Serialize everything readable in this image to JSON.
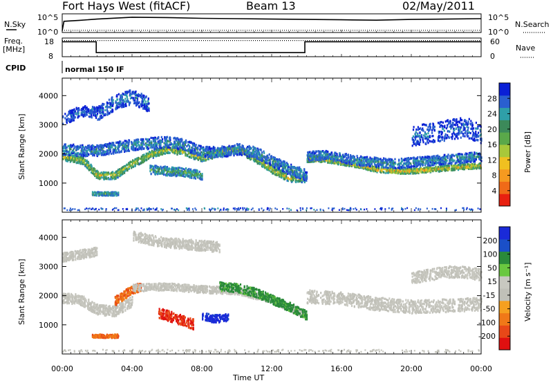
{
  "header": {
    "station": "Fort Hays West (fitACF)",
    "beam": "Beam 13",
    "date": "02/May/2011"
  },
  "colors": {
    "power_scale": [
      "#0a1fd6",
      "#2a5fd0",
      "#2f9fa8",
      "#3c8a5a",
      "#5aa84a",
      "#a8c83a",
      "#f0c020",
      "#f59a20",
      "#f06a18",
      "#e82010"
    ],
    "velocity_scale": [
      "#1a2ad8",
      "#1a4fc8",
      "#2a8a3a",
      "#6ac840",
      "#c8c8c0",
      "#c0c0b8",
      "#f5a020",
      "#f07818",
      "#e84818",
      "#e01010"
    ]
  },
  "chart_data": [
    {
      "type": "line",
      "name": "nsky-panel",
      "left_label": "N.Sky",
      "right_label": "N.Search",
      "left_ticks": [
        "10^5",
        "10^0"
      ],
      "right_ticks": [
        "10^5",
        "10^0"
      ],
      "x_range_hours": [
        0,
        24
      ],
      "series": [
        {
          "name": "N.Sky",
          "style": "solid",
          "x": [
            0,
            0.1,
            1,
            2,
            4,
            6,
            8,
            10,
            12,
            14,
            16,
            18,
            20,
            22,
            24
          ],
          "y": [
            0.1,
            0.6,
            0.65,
            0.72,
            0.82,
            0.8,
            0.76,
            0.74,
            0.72,
            0.7,
            0.68,
            0.66,
            0.7,
            0.72,
            0.74
          ]
        },
        {
          "name": "N.Search",
          "style": "dotted",
          "x": [
            0,
            24
          ],
          "y": [
            0.12,
            0.12
          ]
        }
      ]
    },
    {
      "type": "line",
      "name": "freq-panel",
      "left_label": "Freq.",
      "left_unit": "[MHz]",
      "right_label": "Nave",
      "left_ticks": [
        "18",
        "8"
      ],
      "right_ticks": [
        "60",
        "0"
      ],
      "x_range_hours": [
        0,
        24
      ],
      "series": [
        {
          "name": "Freq",
          "style": "solid",
          "x": [
            0,
            1.95,
            1.95,
            13.9,
            13.9,
            24
          ],
          "y": [
            16,
            16,
            10.2,
            10.2,
            16,
            16
          ]
        },
        {
          "name": "Nave",
          "style": "dotted",
          "x": [
            0,
            24
          ],
          "y": [
            52,
            52
          ]
        }
      ]
    },
    {
      "type": "table",
      "name": "cpid-strip",
      "label": "CPID",
      "text": "normal 150 IF"
    },
    {
      "type": "heatmap",
      "name": "power-panel",
      "ylabel": "Slant Range [km]",
      "x_range_hours": [
        0,
        24
      ],
      "ylim": [
        0,
        4600
      ],
      "y_ticks": [
        1000,
        2000,
        3000,
        4000
      ],
      "colorbar": {
        "label": "Power [dB]",
        "ticks": [
          4,
          8,
          12,
          16,
          20,
          24,
          28
        ],
        "range": [
          0,
          32
        ]
      },
      "bands": [
        {
          "x": [
            0,
            1.2,
            2,
            3,
            4,
            5,
            6,
            7,
            8,
            9,
            10,
            11,
            12,
            13,
            14
          ],
          "y": [
            1900,
            1750,
            1250,
            1250,
            1650,
            1950,
            2150,
            2050,
            1850,
            2050,
            2150,
            1850,
            1450,
            1150,
            1150
          ],
          "width": 260,
          "value": 18
        },
        {
          "x": [
            0,
            1,
            2,
            3,
            4,
            5,
            6,
            7,
            8,
            9,
            10,
            11,
            12,
            13,
            14
          ],
          "y": [
            2150,
            2100,
            2100,
            2200,
            2300,
            2350,
            2400,
            2300,
            2050,
            2050,
            2150,
            2050,
            1750,
            1450,
            1250
          ],
          "width": 380,
          "value": 8
        },
        {
          "x": [
            14,
            15,
            16,
            17,
            18,
            19,
            20,
            21,
            22,
            23,
            24
          ],
          "y": [
            1800,
            1800,
            1700,
            1600,
            1450,
            1400,
            1400,
            1450,
            1500,
            1550,
            1580
          ],
          "width": 180,
          "value": 22
        },
        {
          "x": [
            14,
            15,
            16,
            17,
            18,
            19,
            20,
            21,
            22,
            23,
            24
          ],
          "y": [
            1900,
            1950,
            1850,
            1750,
            1700,
            1650,
            1700,
            1750,
            1800,
            1850,
            1900
          ],
          "width": 320,
          "value": 8
        },
        {
          "x": [
            2,
            2.5,
            3,
            3.5,
            4,
            4.5,
            5
          ],
          "y": [
            3350,
            3550,
            3750,
            3850,
            3950,
            3800,
            3650
          ],
          "width": 500,
          "value": 6
        },
        {
          "x": [
            0,
            0.5,
            1,
            1.5,
            2
          ],
          "y": [
            3200,
            3300,
            3450,
            3450,
            3400
          ],
          "width": 400,
          "value": 5
        },
        {
          "x": [
            5,
            6,
            7,
            8
          ],
          "y": [
            1450,
            1400,
            1350,
            1250
          ],
          "width": 300,
          "value": 12
        },
        {
          "x": [
            1.7,
            2.5,
            3.2
          ],
          "y": [
            620,
            620,
            620
          ],
          "width": 120,
          "value": 12
        },
        {
          "x": [
            20,
            21,
            22,
            23,
            24
          ],
          "y": [
            2600,
            2700,
            2800,
            2900,
            2700
          ],
          "width": 700,
          "value": 5
        }
      ]
    },
    {
      "type": "heatmap",
      "name": "velocity-panel",
      "ylabel": "Slant Range [km]",
      "xlabel": "Time UT",
      "x_range_hours": [
        0,
        24
      ],
      "x_ticks": [
        "00:00",
        "04:00",
        "08:00",
        "12:00",
        "16:00",
        "20:00",
        "00:00"
      ],
      "ylim": [
        0,
        4600
      ],
      "y_ticks": [
        1000,
        2000,
        3000,
        4000
      ],
      "colorbar": {
        "label": "Velocity [m s⁻¹]",
        "ticks": [
          200,
          100,
          50,
          15,
          -15,
          -50,
          -100,
          -200
        ],
        "range": [
          -250,
          250
        ]
      },
      "bands": [
        {
          "x": [
            0,
            1,
            2,
            3,
            4
          ],
          "y": [
            1900,
            1850,
            1500,
            1450,
            1800
          ],
          "width": 350,
          "value": 0
        },
        {
          "x": [
            3,
            3.5,
            4,
            4.5
          ],
          "y": [
            1800,
            2000,
            2200,
            2300
          ],
          "width": 300,
          "value": -70
        },
        {
          "x": [
            4,
            6,
            8,
            10,
            12,
            14
          ],
          "y": [
            2250,
            2300,
            2200,
            2150,
            1850,
            1300
          ],
          "width": 250,
          "value": 0
        },
        {
          "x": [
            9,
            10,
            11,
            12,
            13,
            14
          ],
          "y": [
            2300,
            2250,
            2100,
            1850,
            1600,
            1300
          ],
          "width": 300,
          "value": 40
        },
        {
          "x": [
            5.5,
            6,
            6.5,
            7,
            7.5
          ],
          "y": [
            1400,
            1300,
            1200,
            1100,
            1000
          ],
          "width": 350,
          "value": -150
        },
        {
          "x": [
            8,
            8.5,
            9,
            9.5
          ],
          "y": [
            1300,
            1200,
            1200,
            1250
          ],
          "width": 260,
          "value": 180
        },
        {
          "x": [
            14,
            16,
            18,
            20,
            22,
            24
          ],
          "y": [
            1950,
            1900,
            1700,
            1600,
            1650,
            1700
          ],
          "width": 450,
          "value": 0
        },
        {
          "x": [
            1.7,
            2.5,
            3.2
          ],
          "y": [
            600,
            600,
            600
          ],
          "width": 120,
          "value": -70
        },
        {
          "x": [
            4,
            5,
            6,
            7,
            8,
            9
          ],
          "y": [
            4050,
            3900,
            3800,
            3750,
            3700,
            3650
          ],
          "width": 350,
          "value": 0
        },
        {
          "x": [
            0,
            1,
            2
          ],
          "y": [
            3300,
            3400,
            3500
          ],
          "width": 300,
          "value": 0
        },
        {
          "x": [
            20,
            21,
            22,
            23,
            24
          ],
          "y": [
            2600,
            2700,
            2800,
            2800,
            2700
          ],
          "width": 400,
          "value": 0
        }
      ]
    }
  ]
}
